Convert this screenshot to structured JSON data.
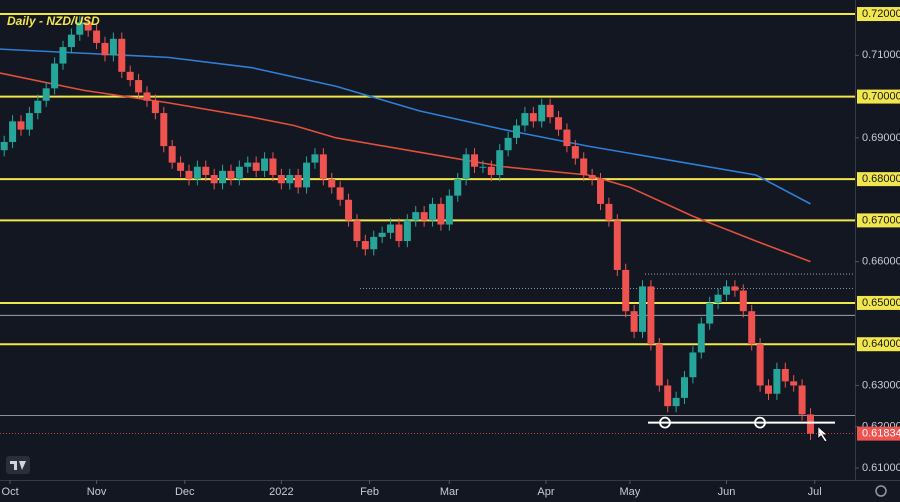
{
  "chart_data": {
    "type": "candlestick",
    "title": "Daily - NZD/USD",
    "xlim": [
      0,
      203.6
    ],
    "ylim": [
      0.6071,
      0.7234
    ],
    "xticks": [
      {
        "value": 2.4,
        "label": "Oct"
      },
      {
        "value": 23,
        "label": "Nov"
      },
      {
        "value": 44,
        "label": "Dec"
      },
      {
        "value": 67,
        "label": "2022"
      },
      {
        "value": 88,
        "label": "Feb"
      },
      {
        "value": 107,
        "label": "Mar"
      },
      {
        "value": 130,
        "label": "Apr"
      },
      {
        "value": 150,
        "label": "May"
      },
      {
        "value": 173,
        "label": "Jun"
      },
      {
        "value": 194,
        "label": "Jul"
      }
    ],
    "yticks": [
      {
        "value": 0.71,
        "label": "0.71000"
      },
      {
        "value": 0.69,
        "label": "0.69000"
      },
      {
        "value": 0.66,
        "label": "0.66000"
      },
      {
        "value": 0.63,
        "label": "0.63000"
      },
      {
        "value": 0.62,
        "label": "0.62000"
      },
      {
        "value": 0.61,
        "label": "0.61000"
      }
    ],
    "levels": [
      {
        "value": 0.72,
        "label": "0.72000"
      },
      {
        "value": 0.7,
        "label": "0.70000"
      },
      {
        "value": 0.68,
        "label": "0.68000"
      },
      {
        "value": 0.67,
        "label": "0.67000"
      },
      {
        "value": 0.65,
        "label": "0.65000"
      },
      {
        "value": 0.64,
        "label": "0.64000"
      }
    ],
    "level_color": "#f2e64d",
    "last_price": {
      "value": 0.61834,
      "label": "0.61834"
    },
    "support": 0.621,
    "reference_lines": [
      0.6227,
      0.647
    ],
    "dotted_lines": [
      0.6535,
      0.657
    ],
    "up_color": "#26a69a",
    "down_color": "#ef5350",
    "candles": {
      "x": [
        1,
        3,
        5,
        7,
        9,
        11,
        13,
        15,
        17,
        19,
        21,
        23,
        25,
        27,
        29,
        31,
        33,
        35,
        37,
        39,
        41,
        43,
        45,
        47,
        49,
        51,
        53,
        55,
        57,
        59,
        61,
        63,
        65,
        67,
        69,
        71,
        73,
        75,
        77,
        79,
        81,
        83,
        85,
        87,
        89,
        91,
        93,
        95,
        97,
        99,
        101,
        103,
        105,
        107,
        109,
        111,
        113,
        115,
        117,
        119,
        121,
        123,
        125,
        127,
        129,
        131,
        133,
        135,
        137,
        139,
        141,
        143,
        145,
        147,
        149,
        151,
        153,
        155,
        157,
        159,
        161,
        163,
        165,
        167,
        169,
        171,
        173,
        175,
        177,
        179,
        181,
        183,
        185,
        187,
        189,
        191,
        193
      ],
      "open": [
        0.687,
        0.689,
        0.694,
        0.692,
        0.696,
        0.699,
        0.702,
        0.708,
        0.712,
        0.715,
        0.718,
        0.716,
        0.713,
        0.71,
        0.714,
        0.706,
        0.704,
        0.701,
        0.699,
        0.696,
        0.688,
        0.684,
        0.682,
        0.68,
        0.683,
        0.681,
        0.679,
        0.682,
        0.68,
        0.683,
        0.684,
        0.682,
        0.685,
        0.681,
        0.679,
        0.681,
        0.678,
        0.684,
        0.686,
        0.68,
        0.678,
        0.675,
        0.67,
        0.665,
        0.663,
        0.666,
        0.667,
        0.669,
        0.665,
        0.67,
        0.672,
        0.67,
        0.674,
        0.669,
        0.676,
        0.68,
        0.686,
        0.683,
        0.683,
        0.681,
        0.687,
        0.69,
        0.693,
        0.696,
        0.694,
        0.698,
        0.695,
        0.692,
        0.688,
        0.685,
        0.681,
        0.68,
        0.674,
        0.67,
        0.658,
        0.648,
        0.643,
        0.654,
        0.64,
        0.63,
        0.625,
        0.627,
        0.632,
        0.638,
        0.645,
        0.65,
        0.652,
        0.654,
        0.653,
        0.648,
        0.64,
        0.63,
        0.628,
        0.634,
        0.631,
        0.63,
        0.623
      ],
      "high": [
        0.6905,
        0.6955,
        0.6955,
        0.6975,
        0.7005,
        0.7035,
        0.7095,
        0.7135,
        0.7165,
        0.7195,
        0.7195,
        0.7175,
        0.7145,
        0.7155,
        0.7155,
        0.7075,
        0.7055,
        0.7025,
        0.7005,
        0.6975,
        0.6895,
        0.6855,
        0.6835,
        0.6845,
        0.6845,
        0.6825,
        0.6835,
        0.6835,
        0.6845,
        0.6855,
        0.6855,
        0.6865,
        0.6865,
        0.6825,
        0.6825,
        0.6825,
        0.6855,
        0.6875,
        0.6875,
        0.6815,
        0.6795,
        0.6765,
        0.6715,
        0.6665,
        0.6675,
        0.6685,
        0.6705,
        0.6705,
        0.6715,
        0.6735,
        0.6735,
        0.6755,
        0.6755,
        0.6775,
        0.6815,
        0.6875,
        0.6875,
        0.6845,
        0.6845,
        0.6885,
        0.6915,
        0.6945,
        0.6975,
        0.6975,
        0.6995,
        0.6995,
        0.6965,
        0.6935,
        0.6895,
        0.6865,
        0.6825,
        0.6815,
        0.6755,
        0.6715,
        0.6595,
        0.6495,
        0.6555,
        0.6555,
        0.6415,
        0.6315,
        0.6285,
        0.6335,
        0.6395,
        0.6465,
        0.6515,
        0.6535,
        0.6555,
        0.6555,
        0.6545,
        0.6495,
        0.6415,
        0.6315,
        0.6355,
        0.6355,
        0.6325,
        0.6315,
        0.6245
      ],
      "low": [
        0.6855,
        0.6875,
        0.6905,
        0.6905,
        0.6945,
        0.6975,
        0.7005,
        0.7065,
        0.7105,
        0.7135,
        0.7145,
        0.7115,
        0.7085,
        0.7085,
        0.7045,
        0.7025,
        0.6995,
        0.6975,
        0.6945,
        0.6865,
        0.6825,
        0.6805,
        0.6785,
        0.6785,
        0.6795,
        0.6775,
        0.6775,
        0.6785,
        0.6785,
        0.6815,
        0.6805,
        0.6805,
        0.6795,
        0.6775,
        0.6775,
        0.6765,
        0.6765,
        0.6825,
        0.6785,
        0.6765,
        0.6735,
        0.6685,
        0.6635,
        0.6615,
        0.6615,
        0.6645,
        0.6655,
        0.6635,
        0.6635,
        0.6685,
        0.6685,
        0.6685,
        0.6675,
        0.6675,
        0.6745,
        0.6785,
        0.6815,
        0.6815,
        0.6795,
        0.6795,
        0.6855,
        0.6885,
        0.6915,
        0.6925,
        0.6925,
        0.6935,
        0.6905,
        0.6865,
        0.6835,
        0.6795,
        0.6785,
        0.6725,
        0.6685,
        0.6565,
        0.6465,
        0.6415,
        0.6415,
        0.6385,
        0.6285,
        0.6235,
        0.6235,
        0.6255,
        0.6305,
        0.6365,
        0.6435,
        0.6485,
        0.6505,
        0.6515,
        0.6465,
        0.6385,
        0.6285,
        0.6265,
        0.6265,
        0.6295,
        0.6285,
        0.6215,
        0.6168
      ],
      "close": [
        0.689,
        0.694,
        0.692,
        0.696,
        0.699,
        0.702,
        0.708,
        0.712,
        0.715,
        0.718,
        0.716,
        0.713,
        0.71,
        0.714,
        0.706,
        0.704,
        0.701,
        0.699,
        0.696,
        0.688,
        0.684,
        0.682,
        0.68,
        0.683,
        0.681,
        0.679,
        0.682,
        0.68,
        0.683,
        0.684,
        0.682,
        0.685,
        0.681,
        0.679,
        0.681,
        0.678,
        0.684,
        0.686,
        0.68,
        0.678,
        0.675,
        0.67,
        0.665,
        0.663,
        0.666,
        0.667,
        0.669,
        0.665,
        0.67,
        0.672,
        0.67,
        0.674,
        0.669,
        0.676,
        0.68,
        0.686,
        0.683,
        0.683,
        0.681,
        0.687,
        0.69,
        0.693,
        0.696,
        0.694,
        0.698,
        0.695,
        0.692,
        0.688,
        0.685,
        0.681,
        0.68,
        0.674,
        0.67,
        0.658,
        0.648,
        0.643,
        0.654,
        0.64,
        0.63,
        0.625,
        0.627,
        0.632,
        0.638,
        0.645,
        0.65,
        0.652,
        0.654,
        0.653,
        0.648,
        0.64,
        0.63,
        0.628,
        0.634,
        0.631,
        0.63,
        0.623,
        0.6183
      ]
    },
    "lines": [
      {
        "color": "#2f7fd6",
        "x": [
          0,
          20,
          40,
          60,
          80,
          100,
          120,
          140,
          160,
          180,
          193
        ],
        "values": [
          0.7115,
          0.7105,
          0.7095,
          0.707,
          0.7025,
          0.6965,
          0.692,
          0.688,
          0.6845,
          0.681,
          0.674
        ]
      },
      {
        "color": "#e0503a",
        "x": [
          0,
          20,
          40,
          60,
          70,
          80,
          100,
          120,
          140,
          150,
          165,
          180,
          193
        ],
        "values": [
          0.7057,
          0.7015,
          0.6985,
          0.695,
          0.693,
          0.69,
          0.6865,
          0.683,
          0.681,
          0.678,
          0.671,
          0.665,
          0.66
        ]
      }
    ]
  }
}
